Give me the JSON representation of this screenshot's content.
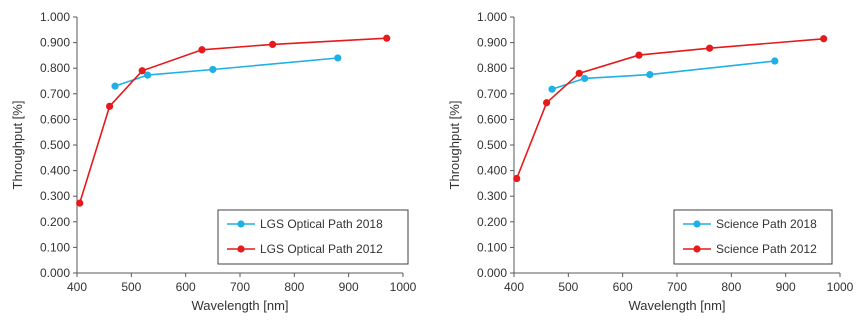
{
  "chart_data": [
    {
      "type": "line",
      "xlabel": "Wavelength [nm]",
      "ylabel": "Throughput [%]",
      "xlim": [
        400,
        1000
      ],
      "ylim": [
        0,
        1
      ],
      "xticks": [
        "400",
        "500",
        "600",
        "700",
        "800",
        "900",
        "1000"
      ],
      "yticks": [
        "0.000",
        "0.100",
        "0.200",
        "0.300",
        "0.400",
        "0.500",
        "0.600",
        "0.700",
        "0.800",
        "0.900",
        "1.000"
      ],
      "grid": false,
      "legend": "bottom-right",
      "series": [
        {
          "name": "LGS Optical Path 2018",
          "color": "#1FB0E6",
          "x": [
            470,
            530,
            650,
            880
          ],
          "y": [
            0.73,
            0.773,
            0.795,
            0.84
          ]
        },
        {
          "name": "LGS Optical Path 2012",
          "color": "#E41A1C",
          "x": [
            405,
            460,
            520,
            630,
            760,
            970
          ],
          "y": [
            0.273,
            0.651,
            0.79,
            0.872,
            0.893,
            0.917
          ]
        }
      ]
    },
    {
      "type": "line",
      "xlabel": "Wavelength [nm]",
      "ylabel": "Throughput [%]",
      "xlim": [
        400,
        1000
      ],
      "ylim": [
        0,
        1
      ],
      "xticks": [
        "400",
        "500",
        "600",
        "700",
        "800",
        "900",
        "1000"
      ],
      "yticks": [
        "0.000",
        "0.100",
        "0.200",
        "0.300",
        "0.400",
        "0.500",
        "0.600",
        "0.700",
        "0.800",
        "0.900",
        "1.000"
      ],
      "grid": false,
      "legend": "bottom-right",
      "series": [
        {
          "name": "Science Path 2018",
          "color": "#1FB0E6",
          "x": [
            470,
            530,
            650,
            880
          ],
          "y": [
            0.718,
            0.76,
            0.775,
            0.828
          ]
        },
        {
          "name": "Science Path 2012",
          "color": "#E41A1C",
          "x": [
            405,
            460,
            520,
            630,
            760,
            970
          ],
          "y": [
            0.369,
            0.665,
            0.78,
            0.851,
            0.878,
            0.915
          ]
        }
      ]
    }
  ]
}
